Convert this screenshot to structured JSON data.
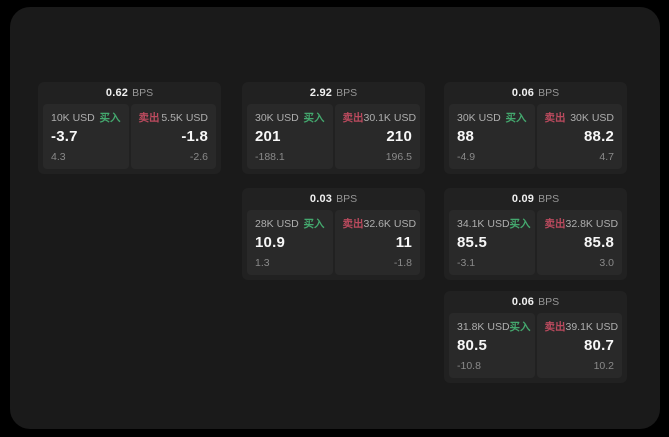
{
  "labels": {
    "bps_suffix": "BPS",
    "buy": "买入",
    "sell": "卖出"
  },
  "colors": {
    "background": "#000000",
    "surface": "#1a1a1a",
    "card": "#212121",
    "tile": "#292929",
    "buy_green": "#44a86e",
    "sell_red": "#bb4a5e"
  },
  "cards": [
    {
      "bps": "0.62",
      "buy": {
        "size": "10K USD",
        "price": "-3.7",
        "sub": "4.3"
      },
      "sell": {
        "size": "5.5K USD",
        "price": "-1.8",
        "sub": "-2.6"
      }
    },
    {
      "bps": "2.92",
      "buy": {
        "size": "30K USD",
        "price": "201",
        "sub": "-188.1"
      },
      "sell": {
        "size": "30.1K USD",
        "price": "210",
        "sub": "196.5"
      }
    },
    {
      "bps": "0.06",
      "buy": {
        "size": "30K USD",
        "price": "88",
        "sub": "-4.9"
      },
      "sell": {
        "size": "30K USD",
        "price": "88.2",
        "sub": "4.7"
      }
    },
    {
      "bps": "0.03",
      "buy": {
        "size": "28K USD",
        "price": "10.9",
        "sub": "1.3"
      },
      "sell": {
        "size": "32.6K USD",
        "price": "11",
        "sub": "-1.8"
      }
    },
    {
      "bps": "0.09",
      "buy": {
        "size": "34.1K USD",
        "price": "85.5",
        "sub": "-3.1"
      },
      "sell": {
        "size": "32.8K USD",
        "price": "85.8",
        "sub": "3.0"
      }
    },
    {
      "bps": "0.06",
      "buy": {
        "size": "31.8K USD",
        "price": "80.5",
        "sub": "-10.8"
      },
      "sell": {
        "size": "39.1K USD",
        "price": "80.7",
        "sub": "10.2"
      }
    }
  ]
}
